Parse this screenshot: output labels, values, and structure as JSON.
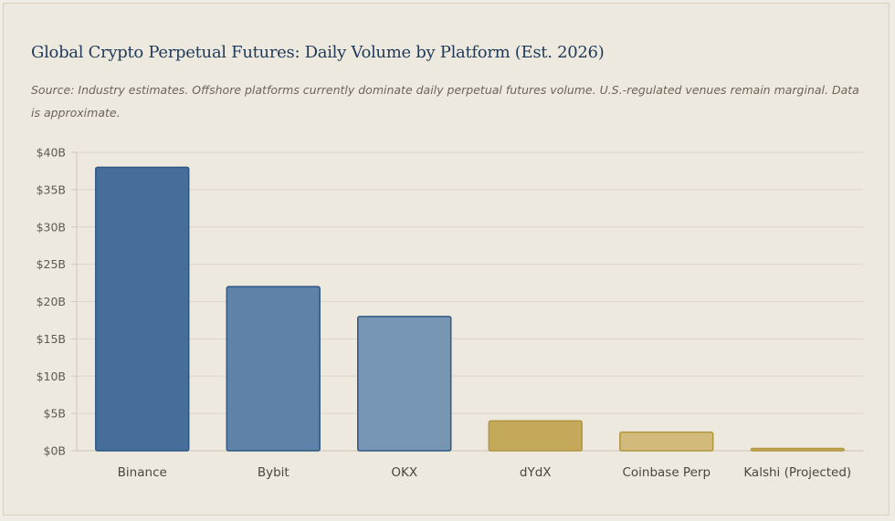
{
  "chart_data": {
    "type": "bar",
    "title": "Global Crypto Perpetual Futures: Daily Volume by Platform (Est. 2026)",
    "subtitle": "Source: Industry estimates. Offshore platforms currently dominate daily perpetual futures volume. U.S.-regulated venues remain marginal. Data is approximate.",
    "xlabel": "",
    "ylabel": "",
    "categories": [
      "Binance",
      "Bybit",
      "OKX",
      "dYdX",
      "Coinbase Perp",
      "Kalshi (Projected)"
    ],
    "values": [
      38,
      22,
      18,
      4,
      2.5,
      0.3
    ],
    "unit": "billion USD",
    "ylim": [
      0,
      40
    ],
    "yticks": [
      0,
      5,
      10,
      15,
      20,
      25,
      30,
      35,
      40
    ],
    "ytick_labels": [
      "$0B",
      "$5B",
      "$10B",
      "$15B",
      "$20B",
      "$25B",
      "$30B",
      "$35B",
      "$40B"
    ],
    "grid": true,
    "legend": "none",
    "colors": [
      "#456f9a",
      "#5f82a8",
      "#7796b4",
      "#c4a95a",
      "#d1ba7c",
      "#c4a95a"
    ],
    "border_colors": [
      "#2d5682",
      "#2d5682",
      "#2d5682",
      "#b2953f",
      "#b2953f",
      "#b2953f"
    ]
  }
}
